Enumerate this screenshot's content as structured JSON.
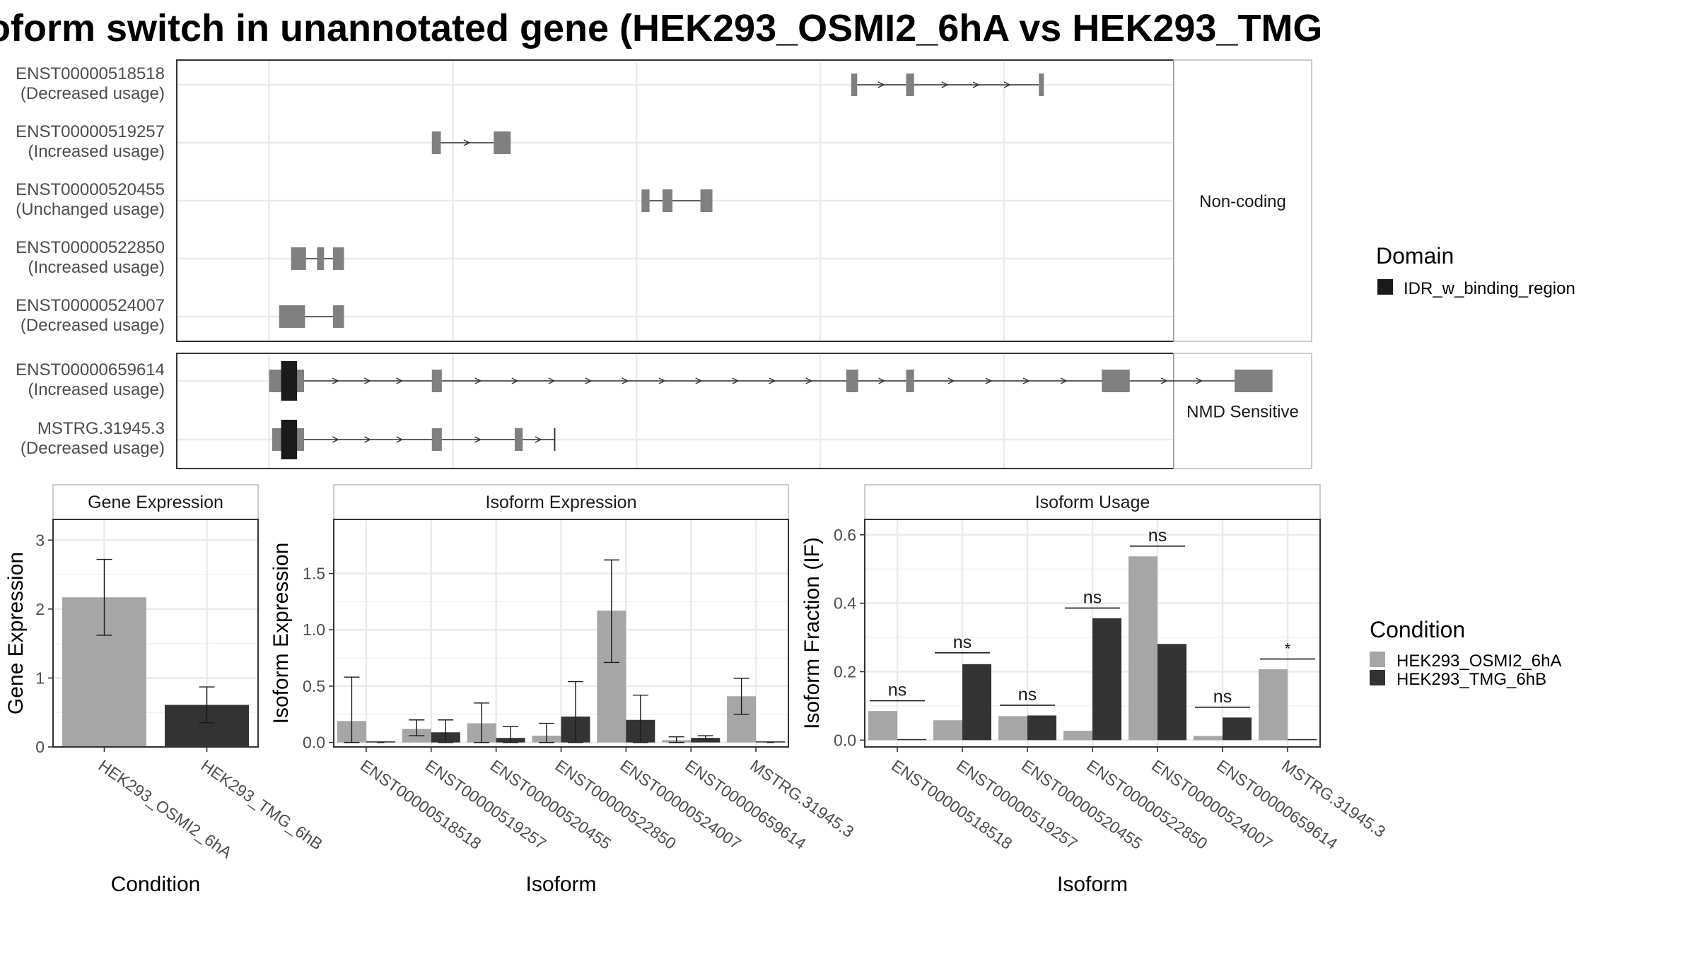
{
  "title": "oform switch in unannotated gene (HEK293_OSMI2_6hA vs HEK293_TMG",
  "colors": {
    "exon": "#808080",
    "domain_idr": "#1a1a1a",
    "cond_a": "#a6a6a6",
    "cond_b": "#333333",
    "grid": "#ebebeb",
    "strip": "#ffffff"
  },
  "structure": {
    "facets": [
      "Non-coding",
      "NMD Sensitive"
    ],
    "x_domain": [
      0,
      100
    ],
    "gridlines": [
      5,
      23.4,
      41.8,
      60.2,
      78.6,
      97
    ],
    "isoforms": [
      {
        "id": "ENST00000518518",
        "usage": "(Decreased usage)",
        "facet": 0,
        "exons": [
          [
            63.3,
            63.9
          ],
          [
            68.8,
            69.6
          ],
          [
            82.1,
            82.6
          ]
        ],
        "domains": []
      },
      {
        "id": "ENST00000519257",
        "usage": "(Increased usage)",
        "facet": 0,
        "exons": [
          [
            21.3,
            22.2
          ],
          [
            27.5,
            29.2
          ]
        ],
        "domains": []
      },
      {
        "id": "ENST00000520455",
        "usage": "(Unchanged usage)",
        "facet": 0,
        "exons": [
          [
            42.3,
            43.1
          ],
          [
            44.4,
            45.4
          ],
          [
            48.2,
            49.4
          ]
        ],
        "domains": []
      },
      {
        "id": "ENST00000522850",
        "usage": "(Increased usage)",
        "facet": 0,
        "exons": [
          [
            7.2,
            8.7
          ],
          [
            9.8,
            10.5
          ],
          [
            11.4,
            12.5
          ]
        ],
        "domains": []
      },
      {
        "id": "ENST00000524007",
        "usage": "(Decreased usage)",
        "facet": 0,
        "exons": [
          [
            6.0,
            8.6
          ],
          [
            11.4,
            12.5
          ]
        ],
        "domains": []
      },
      {
        "id": "ENST00000659614",
        "usage": "(Increased usage)",
        "facet": 1,
        "exons": [
          [
            5.0,
            8.5
          ],
          [
            21.3,
            22.3
          ],
          [
            62.8,
            64.0
          ],
          [
            68.8,
            69.6
          ],
          [
            88.4,
            91.2
          ],
          [
            101.7,
            105.5
          ]
        ],
        "domains": [
          [
            6.2,
            7.8
          ]
        ]
      },
      {
        "id": "MSTRG.31945.3",
        "usage": "(Decreased usage)",
        "facet": 1,
        "exons": [
          [
            5.3,
            8.5
          ],
          [
            21.3,
            22.3
          ],
          [
            29.6,
            30.4
          ]
        ],
        "domains": [
          [
            6.2,
            7.8
          ]
        ],
        "end": 33.6
      }
    ]
  },
  "legends": {
    "domain_title": "Domain",
    "domain_items": [
      "IDR_w_binding_region"
    ],
    "condition_title": "Condition",
    "condition_items": [
      "HEK293_OSMI2_6hA",
      "HEK293_TMG_6hB"
    ]
  },
  "chart_data": [
    {
      "type": "bar",
      "title": "Gene Expression",
      "xlabel": "Condition",
      "ylabel": "Gene Expression",
      "categories": [
        "HEK293_OSMI2_6hA",
        "HEK293_TMG_6hB"
      ],
      "values": [
        2.17,
        0.61
      ],
      "error_low": [
        1.62,
        0.35
      ],
      "error_high": [
        2.72,
        0.87
      ],
      "ylim": [
        0,
        3.3
      ],
      "yticks": [
        0,
        1,
        2,
        3
      ],
      "ytick_labels": [
        "0",
        "1",
        "2",
        "3"
      ]
    },
    {
      "type": "bar",
      "title": "Isoform Expression",
      "xlabel": "Isoform",
      "ylabel": "Isoform Expression",
      "categories": [
        "ENST00000518518",
        "ENST00000519257",
        "ENST00000520455",
        "ENST00000522850",
        "ENST00000524007",
        "ENST00000659614",
        "MSTRG.31945.3"
      ],
      "series": [
        {
          "name": "HEK293_OSMI2_6hA",
          "values": [
            0.19,
            0.12,
            0.17,
            0.06,
            1.17,
            0.02,
            0.41
          ],
          "error_low": [
            0.0,
            0.06,
            0.0,
            0.0,
            0.71,
            0.0,
            0.25
          ],
          "error_high": [
            0.58,
            0.2,
            0.35,
            0.17,
            1.62,
            0.05,
            0.57
          ]
        },
        {
          "name": "HEK293_TMG_6hB",
          "values": [
            0.0,
            0.09,
            0.04,
            0.23,
            0.2,
            0.04,
            0.0
          ],
          "error_low": [
            0.0,
            0.0,
            0.0,
            0.0,
            0.0,
            0.03,
            0.0
          ],
          "error_high": [
            0.0,
            0.2,
            0.14,
            0.54,
            0.42,
            0.06,
            0.0
          ]
        }
      ],
      "ylim": [
        -0.04,
        1.98
      ],
      "yticks": [
        0,
        0.5,
        1,
        1.5
      ],
      "ytick_labels": [
        "0.0",
        "0.5",
        "1.0",
        "1.5"
      ]
    },
    {
      "type": "bar",
      "title": "Isoform Usage",
      "xlabel": "Isoform",
      "ylabel": "Isoform Fraction (IF)",
      "categories": [
        "ENST00000518518",
        "ENST00000519257",
        "ENST00000520455",
        "ENST00000522850",
        "ENST00000524007",
        "ENST00000659614",
        "MSTRG.31945.3"
      ],
      "series": [
        {
          "name": "HEK293_OSMI2_6hA",
          "values": [
            0.085,
            0.058,
            0.07,
            0.027,
            0.537,
            0.012,
            0.207
          ]
        },
        {
          "name": "HEK293_TMG_6hB",
          "values": [
            0.0,
            0.222,
            0.072,
            0.356,
            0.281,
            0.066,
            0.0
          ]
        }
      ],
      "significance": [
        "ns",
        "ns",
        "ns",
        "ns",
        "ns",
        "ns",
        "*"
      ],
      "sig_y": [
        0.115,
        0.255,
        0.102,
        0.386,
        0.567,
        0.096,
        0.237
      ],
      "ylim": [
        -0.02,
        0.645
      ],
      "yticks": [
        0,
        0.2,
        0.4,
        0.6
      ],
      "ytick_labels": [
        "0.0",
        "0.2",
        "0.4",
        "0.6"
      ]
    }
  ]
}
